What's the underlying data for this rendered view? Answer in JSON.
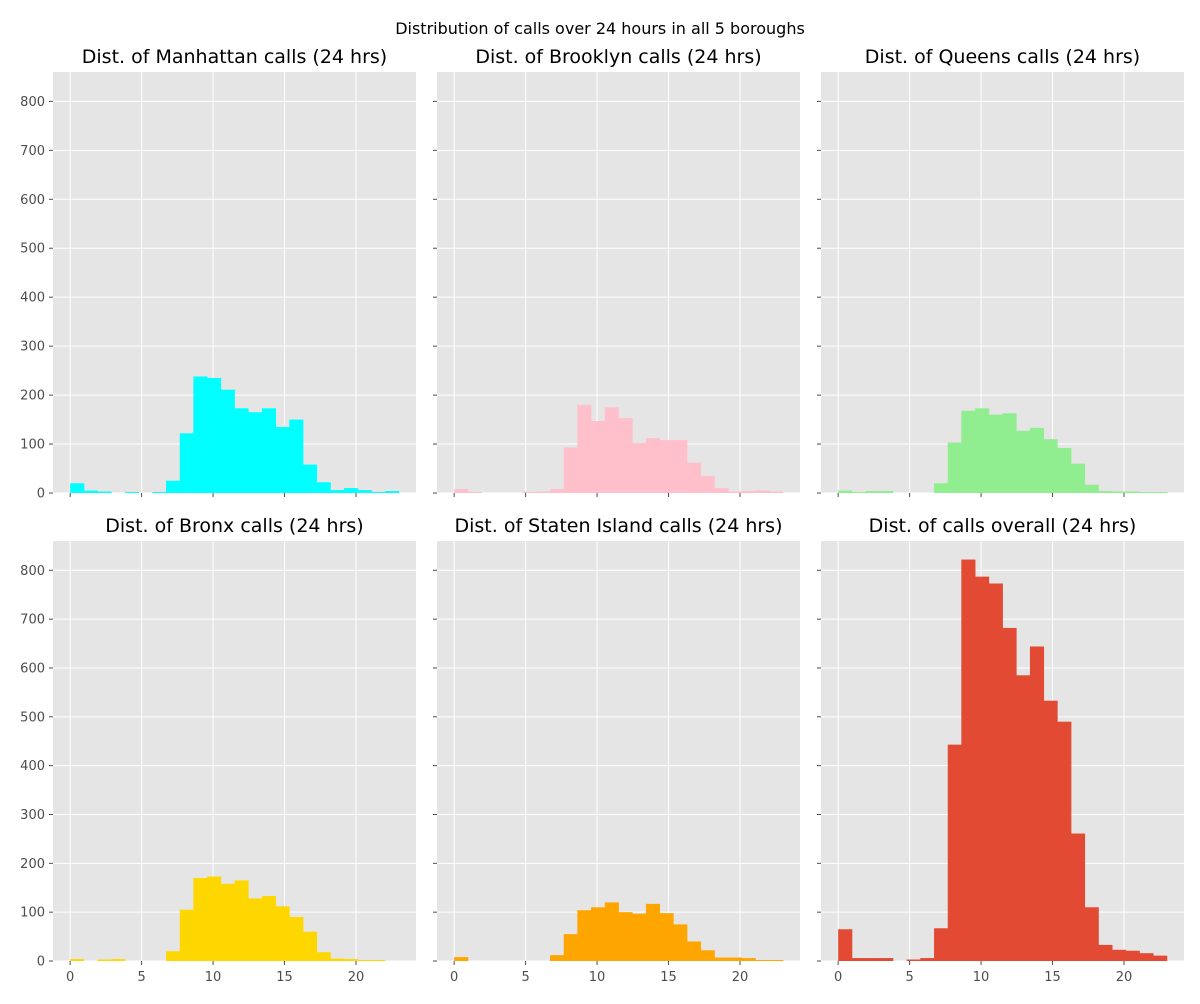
{
  "figure": {
    "suptitle": "Distribution of calls over 24 hours in all 5 boroughs"
  },
  "chart_data": [
    {
      "type": "bar",
      "title": "Dist. of Manhattan calls (24 hrs)",
      "xlabel": "",
      "ylabel": "",
      "xlim": [
        -1.2,
        24.2
      ],
      "ylim": [
        0,
        860
      ],
      "xticks": [
        0,
        5,
        10,
        15,
        20
      ],
      "yticks": [
        0,
        100,
        200,
        300,
        400,
        500,
        600,
        700,
        800
      ],
      "show_xticklabels": false,
      "show_yticklabels": true,
      "color": "#00FFFF",
      "grid": true,
      "bins": [
        {
          "x0": 0.0,
          "x1": 0.96,
          "count": 20
        },
        {
          "x0": 0.96,
          "x1": 1.92,
          "count": 5
        },
        {
          "x0": 1.92,
          "x1": 2.88,
          "count": 3
        },
        {
          "x0": 3.83,
          "x1": 4.79,
          "count": 2
        },
        {
          "x0": 5.75,
          "x1": 6.71,
          "count": 2
        },
        {
          "x0": 6.71,
          "x1": 7.67,
          "count": 25
        },
        {
          "x0": 7.67,
          "x1": 8.62,
          "count": 122
        },
        {
          "x0": 8.62,
          "x1": 9.58,
          "count": 238
        },
        {
          "x0": 9.58,
          "x1": 10.54,
          "count": 235
        },
        {
          "x0": 10.54,
          "x1": 11.5,
          "count": 211
        },
        {
          "x0": 11.5,
          "x1": 12.46,
          "count": 173
        },
        {
          "x0": 12.46,
          "x1": 13.42,
          "count": 165
        },
        {
          "x0": 13.42,
          "x1": 14.38,
          "count": 173
        },
        {
          "x0": 14.38,
          "x1": 15.33,
          "count": 135
        },
        {
          "x0": 15.33,
          "x1": 16.29,
          "count": 150
        },
        {
          "x0": 16.29,
          "x1": 17.25,
          "count": 58
        },
        {
          "x0": 17.25,
          "x1": 18.21,
          "count": 22
        },
        {
          "x0": 18.21,
          "x1": 19.17,
          "count": 6
        },
        {
          "x0": 19.17,
          "x1": 20.12,
          "count": 10
        },
        {
          "x0": 20.12,
          "x1": 21.08,
          "count": 6
        },
        {
          "x0": 21.08,
          "x1": 22.04,
          "count": 2
        },
        {
          "x0": 22.04,
          "x1": 23.0,
          "count": 4
        }
      ]
    },
    {
      "type": "bar",
      "title": "Dist. of Brooklyn calls (24 hrs)",
      "xlabel": "",
      "ylabel": "",
      "xlim": [
        -1.2,
        24.2
      ],
      "ylim": [
        0,
        860
      ],
      "xticks": [
        0,
        5,
        10,
        15,
        20
      ],
      "yticks": [
        0,
        100,
        200,
        300,
        400,
        500,
        600,
        700,
        800
      ],
      "show_xticklabels": false,
      "show_yticklabels": false,
      "color": "#FFC0CB",
      "grid": true,
      "bins": [
        {
          "x0": 0.0,
          "x1": 0.96,
          "count": 8
        },
        {
          "x0": 0.96,
          "x1": 1.92,
          "count": 2
        },
        {
          "x0": 4.79,
          "x1": 5.75,
          "count": 2
        },
        {
          "x0": 5.75,
          "x1": 6.71,
          "count": 3
        },
        {
          "x0": 6.71,
          "x1": 7.67,
          "count": 8
        },
        {
          "x0": 7.67,
          "x1": 8.62,
          "count": 93
        },
        {
          "x0": 8.62,
          "x1": 9.58,
          "count": 180
        },
        {
          "x0": 9.58,
          "x1": 10.54,
          "count": 147
        },
        {
          "x0": 10.54,
          "x1": 11.5,
          "count": 175
        },
        {
          "x0": 11.5,
          "x1": 12.46,
          "count": 153
        },
        {
          "x0": 12.46,
          "x1": 13.42,
          "count": 102
        },
        {
          "x0": 13.42,
          "x1": 14.38,
          "count": 112
        },
        {
          "x0": 14.38,
          "x1": 15.33,
          "count": 108
        },
        {
          "x0": 15.33,
          "x1": 16.29,
          "count": 108
        },
        {
          "x0": 16.29,
          "x1": 17.25,
          "count": 62
        },
        {
          "x0": 17.25,
          "x1": 18.21,
          "count": 35
        },
        {
          "x0": 18.21,
          "x1": 19.17,
          "count": 10
        },
        {
          "x0": 19.17,
          "x1": 20.12,
          "count": 3
        },
        {
          "x0": 20.12,
          "x1": 21.08,
          "count": 4
        },
        {
          "x0": 21.08,
          "x1": 22.04,
          "count": 5
        },
        {
          "x0": 22.04,
          "x1": 23.0,
          "count": 3
        }
      ]
    },
    {
      "type": "bar",
      "title": "Dist. of Queens calls (24 hrs)",
      "xlabel": "",
      "ylabel": "",
      "xlim": [
        -1.2,
        24.2
      ],
      "ylim": [
        0,
        860
      ],
      "xticks": [
        0,
        5,
        10,
        15,
        20
      ],
      "yticks": [
        0,
        100,
        200,
        300,
        400,
        500,
        600,
        700,
        800
      ],
      "show_xticklabels": false,
      "show_yticklabels": false,
      "color": "#90EE90",
      "grid": true,
      "bins": [
        {
          "x0": 0.0,
          "x1": 0.96,
          "count": 5
        },
        {
          "x0": 0.96,
          "x1": 1.92,
          "count": 2
        },
        {
          "x0": 1.92,
          "x1": 2.88,
          "count": 4
        },
        {
          "x0": 2.88,
          "x1": 3.83,
          "count": 4
        },
        {
          "x0": 6.71,
          "x1": 7.67,
          "count": 20
        },
        {
          "x0": 7.67,
          "x1": 8.62,
          "count": 103
        },
        {
          "x0": 8.62,
          "x1": 9.58,
          "count": 168
        },
        {
          "x0": 9.58,
          "x1": 10.54,
          "count": 173
        },
        {
          "x0": 10.54,
          "x1": 11.5,
          "count": 160
        },
        {
          "x0": 11.5,
          "x1": 12.46,
          "count": 163
        },
        {
          "x0": 12.46,
          "x1": 13.42,
          "count": 127
        },
        {
          "x0": 13.42,
          "x1": 14.38,
          "count": 133
        },
        {
          "x0": 14.38,
          "x1": 15.33,
          "count": 110
        },
        {
          "x0": 15.33,
          "x1": 16.29,
          "count": 92
        },
        {
          "x0": 16.29,
          "x1": 17.25,
          "count": 60
        },
        {
          "x0": 17.25,
          "x1": 18.21,
          "count": 17
        },
        {
          "x0": 18.21,
          "x1": 19.17,
          "count": 4
        },
        {
          "x0": 19.17,
          "x1": 20.12,
          "count": 3
        },
        {
          "x0": 20.12,
          "x1": 21.08,
          "count": 3
        },
        {
          "x0": 21.08,
          "x1": 22.04,
          "count": 2
        },
        {
          "x0": 22.04,
          "x1": 23.0,
          "count": 2
        }
      ]
    },
    {
      "type": "bar",
      "title": "Dist. of Bronx calls (24 hrs)",
      "xlabel": "",
      "ylabel": "",
      "xlim": [
        -1.2,
        24.2
      ],
      "ylim": [
        0,
        860
      ],
      "xticks": [
        0,
        5,
        10,
        15,
        20
      ],
      "yticks": [
        0,
        100,
        200,
        300,
        400,
        500,
        600,
        700,
        800
      ],
      "show_xticklabels": true,
      "show_yticklabels": true,
      "color": "#FFD700",
      "grid": true,
      "bins": [
        {
          "x0": 0.0,
          "x1": 0.96,
          "count": 4
        },
        {
          "x0": 1.92,
          "x1": 2.88,
          "count": 3
        },
        {
          "x0": 2.88,
          "x1": 3.83,
          "count": 4
        },
        {
          "x0": 6.71,
          "x1": 7.67,
          "count": 20
        },
        {
          "x0": 7.67,
          "x1": 8.62,
          "count": 105
        },
        {
          "x0": 8.62,
          "x1": 9.58,
          "count": 170
        },
        {
          "x0": 9.58,
          "x1": 10.54,
          "count": 173
        },
        {
          "x0": 10.54,
          "x1": 11.5,
          "count": 158
        },
        {
          "x0": 11.5,
          "x1": 12.46,
          "count": 165
        },
        {
          "x0": 12.46,
          "x1": 13.42,
          "count": 128
        },
        {
          "x0": 13.42,
          "x1": 14.38,
          "count": 133
        },
        {
          "x0": 14.38,
          "x1": 15.33,
          "count": 112
        },
        {
          "x0": 15.33,
          "x1": 16.29,
          "count": 90
        },
        {
          "x0": 16.29,
          "x1": 17.25,
          "count": 60
        },
        {
          "x0": 17.25,
          "x1": 18.21,
          "count": 18
        },
        {
          "x0": 18.21,
          "x1": 19.17,
          "count": 5
        },
        {
          "x0": 19.17,
          "x1": 20.12,
          "count": 4
        },
        {
          "x0": 20.12,
          "x1": 21.08,
          "count": 2
        },
        {
          "x0": 21.08,
          "x1": 22.04,
          "count": 2
        }
      ]
    },
    {
      "type": "bar",
      "title": "Dist. of Staten Island calls (24 hrs)",
      "xlabel": "",
      "ylabel": "",
      "xlim": [
        -1.2,
        24.2
      ],
      "ylim": [
        0,
        860
      ],
      "xticks": [
        0,
        5,
        10,
        15,
        20
      ],
      "yticks": [
        0,
        100,
        200,
        300,
        400,
        500,
        600,
        700,
        800
      ],
      "show_xticklabels": true,
      "show_yticklabels": false,
      "color": "#FFA500",
      "grid": true,
      "bins": [
        {
          "x0": 0.0,
          "x1": 0.96,
          "count": 8
        },
        {
          "x0": 6.71,
          "x1": 7.67,
          "count": 12
        },
        {
          "x0": 7.67,
          "x1": 8.62,
          "count": 55
        },
        {
          "x0": 8.62,
          "x1": 9.58,
          "count": 104
        },
        {
          "x0": 9.58,
          "x1": 10.54,
          "count": 110
        },
        {
          "x0": 10.54,
          "x1": 11.5,
          "count": 120
        },
        {
          "x0": 11.5,
          "x1": 12.46,
          "count": 100
        },
        {
          "x0": 12.46,
          "x1": 13.42,
          "count": 97
        },
        {
          "x0": 13.42,
          "x1": 14.38,
          "count": 117
        },
        {
          "x0": 14.38,
          "x1": 15.33,
          "count": 98
        },
        {
          "x0": 15.33,
          "x1": 16.29,
          "count": 75
        },
        {
          "x0": 16.29,
          "x1": 17.25,
          "count": 40
        },
        {
          "x0": 17.25,
          "x1": 18.21,
          "count": 22
        },
        {
          "x0": 18.21,
          "x1": 19.17,
          "count": 7
        },
        {
          "x0": 19.17,
          "x1": 20.12,
          "count": 7
        },
        {
          "x0": 20.12,
          "x1": 21.08,
          "count": 6
        },
        {
          "x0": 21.08,
          "x1": 22.04,
          "count": 2
        },
        {
          "x0": 22.04,
          "x1": 23.0,
          "count": 2
        }
      ]
    },
    {
      "type": "bar",
      "title": "Dist. of calls overall (24 hrs)",
      "xlabel": "",
      "ylabel": "",
      "xlim": [
        -1.2,
        24.2
      ],
      "ylim": [
        0,
        860
      ],
      "xticks": [
        0,
        5,
        10,
        15,
        20
      ],
      "yticks": [
        0,
        100,
        200,
        300,
        400,
        500,
        600,
        700,
        800
      ],
      "show_xticklabels": true,
      "show_yticklabels": false,
      "color": "#E24A33",
      "grid": true,
      "bins": [
        {
          "x0": 0.0,
          "x1": 0.96,
          "count": 65
        },
        {
          "x0": 0.96,
          "x1": 1.92,
          "count": 6
        },
        {
          "x0": 1.92,
          "x1": 2.88,
          "count": 6
        },
        {
          "x0": 2.88,
          "x1": 3.83,
          "count": 6
        },
        {
          "x0": 4.79,
          "x1": 5.75,
          "count": 3
        },
        {
          "x0": 5.75,
          "x1": 6.71,
          "count": 6
        },
        {
          "x0": 6.71,
          "x1": 7.67,
          "count": 67
        },
        {
          "x0": 7.67,
          "x1": 8.62,
          "count": 443
        },
        {
          "x0": 8.62,
          "x1": 9.58,
          "count": 822
        },
        {
          "x0": 9.58,
          "x1": 10.54,
          "count": 787
        },
        {
          "x0": 10.54,
          "x1": 11.5,
          "count": 773
        },
        {
          "x0": 11.5,
          "x1": 12.46,
          "count": 682
        },
        {
          "x0": 12.46,
          "x1": 13.42,
          "count": 585
        },
        {
          "x0": 13.42,
          "x1": 14.38,
          "count": 644
        },
        {
          "x0": 14.38,
          "x1": 15.33,
          "count": 533
        },
        {
          "x0": 15.33,
          "x1": 16.29,
          "count": 490
        },
        {
          "x0": 16.29,
          "x1": 17.25,
          "count": 261
        },
        {
          "x0": 17.25,
          "x1": 18.21,
          "count": 110
        },
        {
          "x0": 18.21,
          "x1": 19.17,
          "count": 33
        },
        {
          "x0": 19.17,
          "x1": 20.12,
          "count": 23
        },
        {
          "x0": 20.12,
          "x1": 21.08,
          "count": 21
        },
        {
          "x0": 21.08,
          "x1": 22.04,
          "count": 16
        },
        {
          "x0": 22.04,
          "x1": 23.0,
          "count": 11
        }
      ]
    }
  ]
}
